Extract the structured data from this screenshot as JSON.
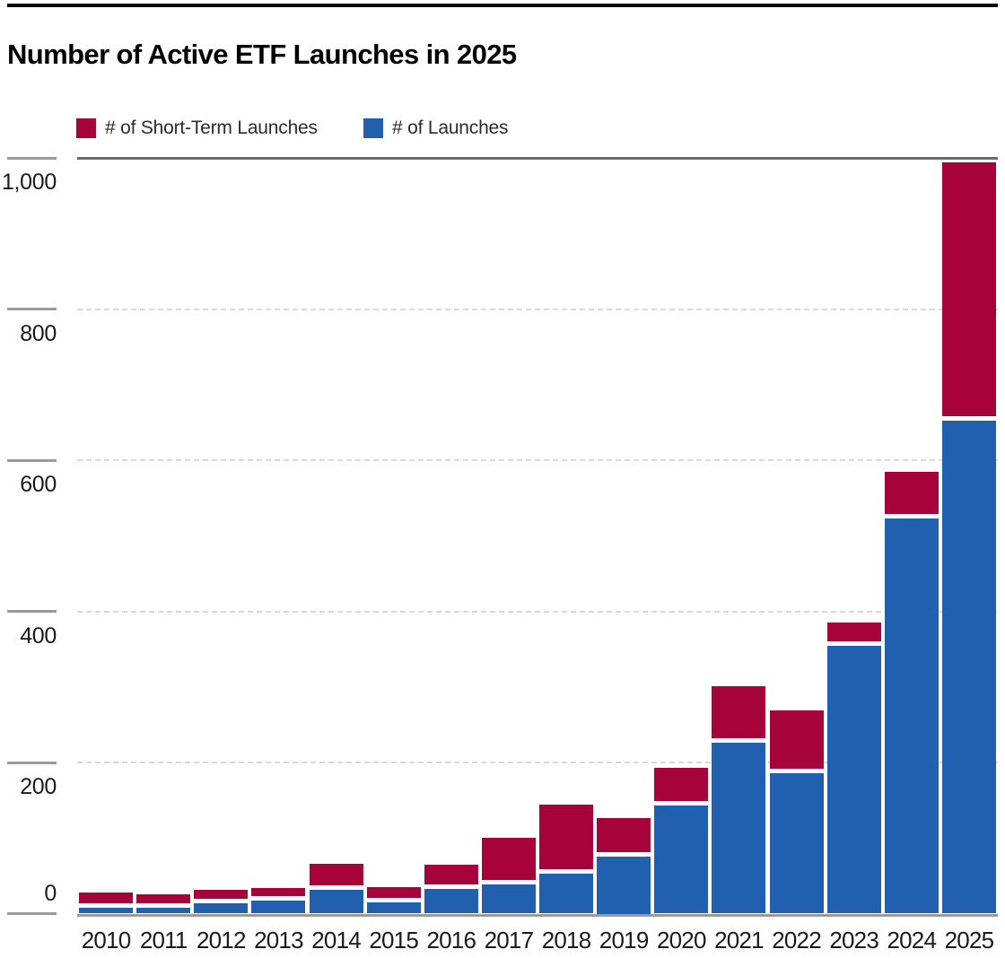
{
  "title": "Number of Active ETF Launches in 2025",
  "legend": {
    "items": [
      {
        "label": "# of Short-Term Launches",
        "color": "#A50339"
      },
      {
        "label": "# of Launches",
        "color": "#2060AF"
      }
    ]
  },
  "axis": {
    "y_tick_labels": [
      "0",
      "200",
      "400",
      "600",
      "800",
      "1,000"
    ],
    "x_tick_labels": [
      "2010",
      "2011",
      "2012",
      "2013",
      "2014",
      "2015",
      "2016",
      "2017",
      "2018",
      "2019",
      "2020",
      "2021",
      "2022",
      "2023",
      "2024",
      "2025"
    ]
  },
  "chart_data": {
    "type": "bar",
    "stacked": true,
    "title": "Number of Active ETF Launches in 2025",
    "categories": [
      "2010",
      "2011",
      "2012",
      "2013",
      "2014",
      "2015",
      "2016",
      "2017",
      "2018",
      "2019",
      "2020",
      "2021",
      "2022",
      "2023",
      "2024",
      "2025"
    ],
    "series": [
      {
        "name": "# of Launches",
        "color": "#2060AF",
        "values": [
          8,
          8,
          14,
          17,
          31,
          15,
          33,
          38,
          53,
          75,
          143,
          226,
          186,
          354,
          523,
          652
        ]
      },
      {
        "name": "# of Short-Term Launches",
        "color": "#A50339",
        "values": [
          20,
          18,
          17,
          17,
          35,
          20,
          32,
          62,
          91,
          52,
          50,
          75,
          83,
          31,
          61,
          342
        ]
      }
    ],
    "totals": [
      28,
      26,
      31,
      34,
      66,
      35,
      65,
      100,
      144,
      127,
      193,
      301,
      269,
      385,
      584,
      994
    ],
    "xlabel": "",
    "ylabel": "",
    "ylim": [
      0,
      1000
    ],
    "yticks": [
      0,
      200,
      400,
      600,
      800,
      1000
    ],
    "grid": "horizontal-dashed",
    "legend_position": "top-left"
  }
}
